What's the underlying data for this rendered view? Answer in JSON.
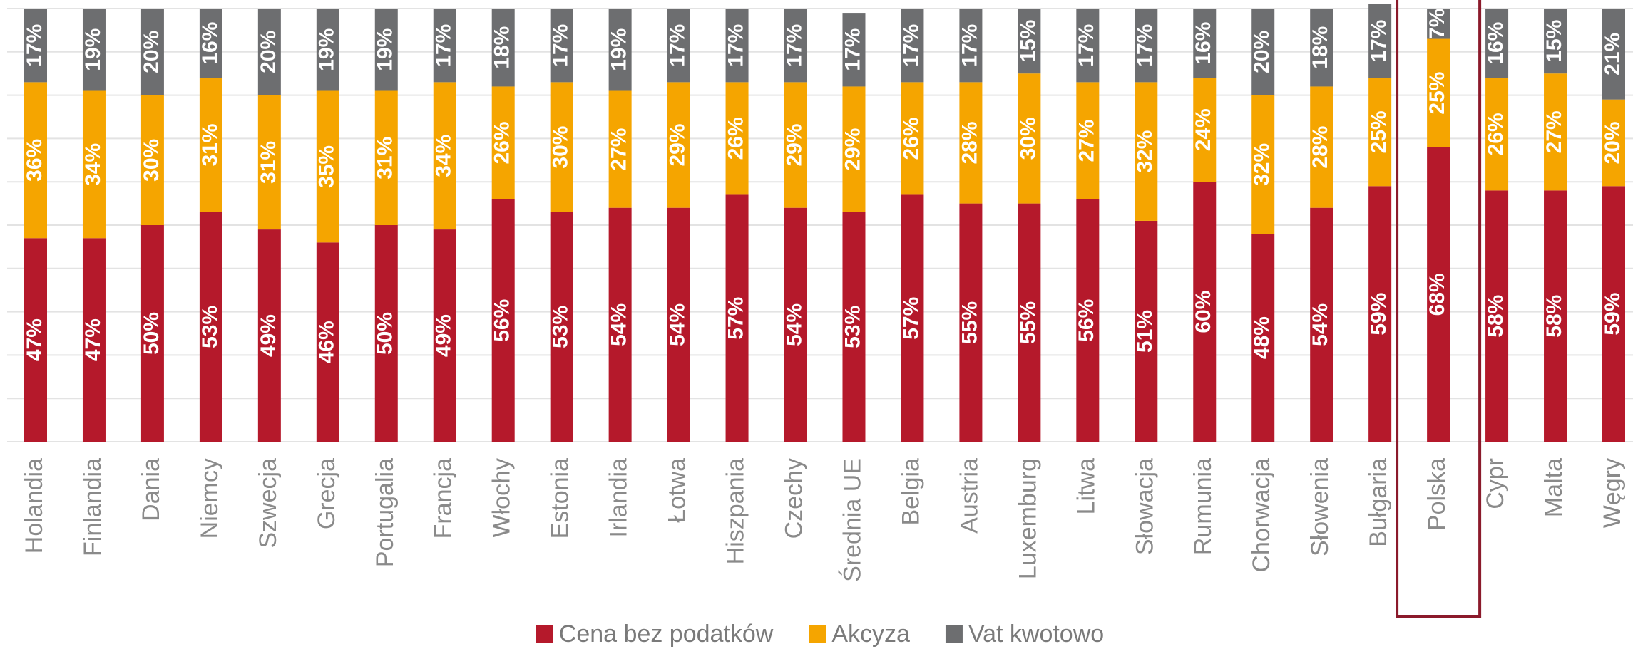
{
  "chart_data": {
    "type": "stacked_bar",
    "categories": [
      "Holandia",
      "Finlandia",
      "Dania",
      "Niemcy",
      "Szwecja",
      "Grecja",
      "Portugalia",
      "Francja",
      "Włochy",
      "Estonia",
      "Irlandia",
      "Łotwa",
      "Hiszpania",
      "Czechy",
      "Średnia UE",
      "Belgia",
      "Austria",
      "Luxemburg",
      "Litwa",
      "Słowacja",
      "Rumunia",
      "Chorwacja",
      "Słowenia",
      "Bułgaria",
      "Polska",
      "Cypr",
      "Malta",
      "Węgry"
    ],
    "series": [
      {
        "name": "Cena bez podatków",
        "color": "#b5192b",
        "values": [
          47,
          47,
          50,
          53,
          49,
          46,
          50,
          49,
          56,
          53,
          54,
          54,
          57,
          54,
          53,
          57,
          55,
          55,
          56,
          51,
          60,
          48,
          54,
          59,
          68,
          58,
          58,
          59
        ],
        "value_labels": [
          "47%",
          "47%",
          "50%",
          "53%",
          "49%",
          "46%",
          "50%",
          "49%",
          "56%",
          "53%",
          "54%",
          "54%",
          "57%",
          "54%",
          "53%",
          "57%",
          "55%",
          "55%",
          "56%",
          "51%",
          "60%",
          "48%",
          "54%",
          "59%",
          "68%",
          "58%",
          "58%",
          "59%"
        ]
      },
      {
        "name": "Akcyza",
        "color": "#f5a500",
        "values": [
          36,
          34,
          30,
          31,
          31,
          35,
          31,
          34,
          26,
          30,
          27,
          29,
          26,
          29,
          29,
          26,
          28,
          30,
          27,
          32,
          24,
          32,
          28,
          25,
          25,
          26,
          27,
          20
        ],
        "value_labels": [
          "36%",
          "34%",
          "30%",
          "31%",
          "31%",
          "35%",
          "31%",
          "34%",
          "26%",
          "30%",
          "27%",
          "29%",
          "26%",
          "29%",
          "29%",
          "26%",
          "28%",
          "30%",
          "27%",
          "32%",
          "24%",
          "32%",
          "28%",
          "25%",
          "25%",
          "26%",
          "27%",
          "20%"
        ]
      },
      {
        "name": "Vat kwotowo",
        "color": "#6d6e70",
        "values": [
          17,
          19,
          20,
          16,
          20,
          19,
          19,
          17,
          18,
          17,
          19,
          17,
          17,
          17,
          17,
          17,
          17,
          15,
          17,
          17,
          16,
          20,
          18,
          17,
          7,
          16,
          15,
          21
        ],
        "value_labels": [
          "17%",
          "19%",
          "20%",
          "16%",
          "20%",
          "19%",
          "19%",
          "17%",
          "18%",
          "17%",
          "19%",
          "17%",
          "17%",
          "17%",
          "17%",
          "17%",
          "17%",
          "15%",
          "17%",
          "17%",
          "16%",
          "20%",
          "18%",
          "17%",
          "7%",
          "16%",
          "15%",
          "21%"
        ]
      }
    ],
    "ylim": [
      0,
      100
    ],
    "yticks": [
      0,
      10,
      20,
      30,
      40,
      50,
      60,
      70,
      80,
      90,
      100
    ],
    "ytick_labels": false,
    "grid": true,
    "legend": "bottom",
    "highlight": "Polska",
    "highlight_color": "#8b1a2b"
  }
}
